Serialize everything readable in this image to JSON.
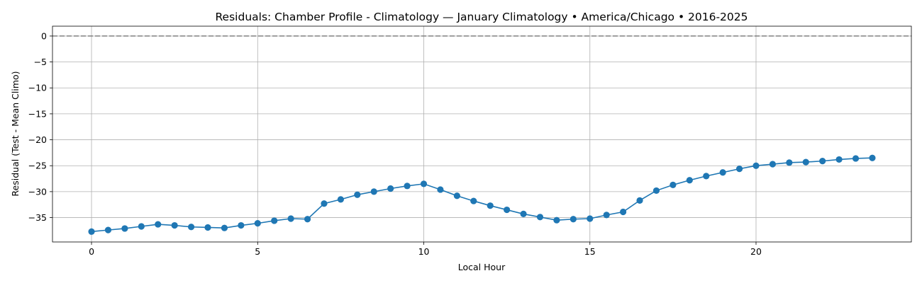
{
  "chart_data": {
    "type": "line",
    "title": "Residuals: Chamber Profile - Climatology — January Climatology • America/Chicago • 2016-2025",
    "xlabel": "Local Hour",
    "ylabel": "Residual (Test - Mean Climo)",
    "xlim": [
      -1.175,
      24.675
    ],
    "ylim": [
      -39.7,
      1.9
    ],
    "xticks": [
      0,
      5,
      10,
      15,
      20
    ],
    "xtick_labels": [
      "0",
      "5",
      "10",
      "15",
      "20"
    ],
    "yticks": [
      0,
      -5,
      -10,
      -15,
      -20,
      -25,
      -30,
      -35
    ],
    "ytick_labels": [
      "0",
      "−5",
      "−10",
      "−15",
      "−20",
      "−25",
      "−30",
      "−35"
    ],
    "grid": true,
    "reference_line": {
      "y": 0,
      "style": "dashed",
      "color": "#808080"
    },
    "series": [
      {
        "color": "#1f77b4",
        "marker": "circle",
        "x": [
          0,
          0.5,
          1,
          1.5,
          2,
          2.5,
          3,
          3.5,
          4,
          4.5,
          5,
          5.5,
          6,
          6.5,
          7,
          7.5,
          8,
          8.5,
          9,
          9.5,
          10,
          10.5,
          11,
          11.5,
          12,
          12.5,
          13,
          13.5,
          14,
          14.5,
          15,
          15.5,
          16,
          16.5,
          17,
          17.5,
          18,
          18.5,
          19,
          19.5,
          20,
          20.5,
          21,
          21.5,
          22,
          22.5,
          23,
          23.5
        ],
        "y": [
          -37.7,
          -37.4,
          -37.1,
          -36.7,
          -36.3,
          -36.5,
          -36.8,
          -36.9,
          -37.0,
          -36.5,
          -36.1,
          -35.6,
          -35.2,
          -35.3,
          -32.3,
          -31.5,
          -30.6,
          -30.0,
          -29.4,
          -28.9,
          -28.5,
          -29.6,
          -30.8,
          -31.8,
          -32.7,
          -33.5,
          -34.3,
          -34.9,
          -35.5,
          -35.3,
          -35.2,
          -34.5,
          -33.9,
          -31.7,
          -29.8,
          -28.7,
          -27.8,
          -27.0,
          -26.3,
          -25.6,
          -25.0,
          -24.7,
          -24.4,
          -24.3,
          -24.1,
          -23.8,
          -23.6,
          -23.5
        ]
      }
    ]
  }
}
